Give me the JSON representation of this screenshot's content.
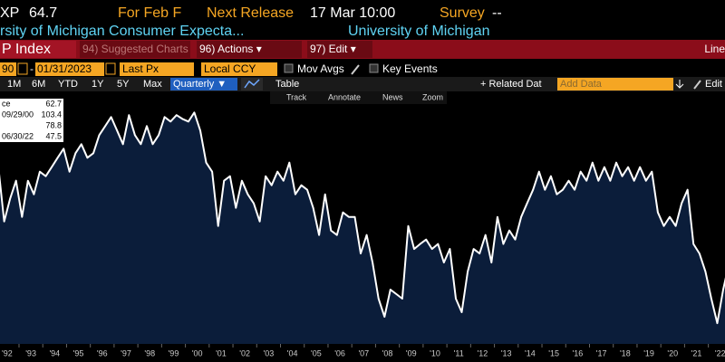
{
  "header": {
    "ticker": "XP",
    "price": "64.7",
    "for_label": "For Feb F",
    "release_label": "Next Release",
    "release_value": "17 Mar 10:00",
    "survey_label": "Survey",
    "survey_value": "--",
    "description": "rsity of Michigan Consumer Expecta...",
    "source": "University of Michigan"
  },
  "toolbar": {
    "security": "P Index",
    "suggested": "94) Suggested Charts",
    "actions": "96) Actions ▾",
    "edit": "97) Edit ▾",
    "view": "Line"
  },
  "controls": {
    "start_date": "90",
    "dash": "-",
    "end_date": "01/31/2023",
    "field": "Last Px",
    "currency": "Local CCY",
    "mov_avgs": "Mov Avgs",
    "key_events": "Key Events"
  },
  "ranges": [
    "1M",
    "6M",
    "YTD",
    "1Y",
    "5Y",
    "Max"
  ],
  "frequency": "Quarterly ▼",
  "table": "Table",
  "related": "+ Related Dat",
  "add_data": "Add Data",
  "edit": "Edit",
  "tools": [
    "Track",
    "Annotate",
    "News",
    "Zoom"
  ],
  "chart_data": {
    "type": "line",
    "color": "#ffffff",
    "fill": "#0b1d3a",
    "legend": [
      {
        "label": "ce",
        "value": 62.7
      },
      {
        "label": "09/29/00",
        "value": 103.4
      },
      {
        "value": 78.8
      },
      {
        "label": "06/30/22",
        "value": 47.5
      }
    ],
    "xlim": [
      1992.2,
      2022.7
    ],
    "ylim": [
      42,
      109
    ],
    "xticks": [
      {
        "value": 1992,
        "label": "'92"
      },
      {
        "value": 1993,
        "label": "'93"
      },
      {
        "value": 1994,
        "label": "'94"
      },
      {
        "value": 1995,
        "label": "'95"
      },
      {
        "value": 1996,
        "label": "'96"
      },
      {
        "value": 1997,
        "label": "'97"
      },
      {
        "value": 1998,
        "label": "'98"
      },
      {
        "value": 1999,
        "label": "'99"
      },
      {
        "value": 2000,
        "label": "'00"
      },
      {
        "value": 2001,
        "label": "'01"
      },
      {
        "value": 2002,
        "label": "'02"
      },
      {
        "value": 2003,
        "label": "'03"
      },
      {
        "value": 2004,
        "label": "'04"
      },
      {
        "value": 2005,
        "label": "'05"
      },
      {
        "value": 2006,
        "label": "'06"
      },
      {
        "value": 2007,
        "label": "'07"
      },
      {
        "value": 2008,
        "label": "'08"
      },
      {
        "value": 2009,
        "label": "'09"
      },
      {
        "value": 2010,
        "label": "'10"
      },
      {
        "value": 2011,
        "label": "'11"
      },
      {
        "value": 2012,
        "label": "'12"
      },
      {
        "value": 2013,
        "label": "'13"
      },
      {
        "value": 2014,
        "label": "'14"
      },
      {
        "value": 2015,
        "label": "'15"
      },
      {
        "value": 2016,
        "label": "'16"
      },
      {
        "value": 2017,
        "label": "'17"
      },
      {
        "value": 2018,
        "label": "'18"
      },
      {
        "value": 2019,
        "label": "'19"
      },
      {
        "value": 2020,
        "label": "'20"
      },
      {
        "value": 2021,
        "label": "'21"
      },
      {
        "value": 2022,
        "label": "'22"
      }
    ],
    "x": [
      1992.125,
      1992.375,
      1992.625,
      1992.875,
      1993.125,
      1993.375,
      1993.625,
      1993.875,
      1994.125,
      1994.375,
      1994.625,
      1994.875,
      1995.125,
      1995.375,
      1995.625,
      1995.875,
      1996.125,
      1996.375,
      1996.625,
      1996.875,
      1997.125,
      1997.375,
      1997.625,
      1997.875,
      1998.125,
      1998.375,
      1998.625,
      1998.875,
      1999.125,
      1999.375,
      1999.625,
      1999.875,
      2000.125,
      2000.375,
      2000.625,
      2000.875,
      2001.125,
      2001.375,
      2001.625,
      2001.875,
      2002.125,
      2002.375,
      2002.625,
      2002.875,
      2003.125,
      2003.375,
      2003.625,
      2003.875,
      2004.125,
      2004.375,
      2004.625,
      2004.875,
      2005.125,
      2005.375,
      2005.625,
      2005.875,
      2006.125,
      2006.375,
      2006.625,
      2006.875,
      2007.125,
      2007.375,
      2007.625,
      2007.875,
      2008.125,
      2008.375,
      2008.625,
      2008.875,
      2009.125,
      2009.375,
      2009.625,
      2009.875,
      2010.125,
      2010.375,
      2010.625,
      2010.875,
      2011.125,
      2011.375,
      2011.625,
      2011.875,
      2012.125,
      2012.375,
      2012.625,
      2012.875,
      2013.125,
      2013.375,
      2013.625,
      2013.875,
      2014.125,
      2014.375,
      2014.625,
      2014.875,
      2015.125,
      2015.375,
      2015.625,
      2015.875,
      2016.125,
      2016.375,
      2016.625,
      2016.875,
      2017.125,
      2017.375,
      2017.625,
      2017.875,
      2018.125,
      2018.375,
      2018.625,
      2018.875,
      2019.125,
      2019.375,
      2019.625,
      2019.875,
      2020.125,
      2020.375,
      2020.625,
      2020.875,
      2021.125,
      2021.375,
      2021.625,
      2021.875,
      2022.125,
      2022.375,
      2022.625,
      2022.875
    ],
    "values": [
      89.4,
      74.5,
      80.5,
      85.3,
      75.7,
      85.3,
      81.7,
      87.7,
      86.5,
      88.9,
      91.4,
      93.8,
      87.7,
      92.6,
      95.0,
      91.4,
      92.6,
      97.4,
      99.8,
      102.2,
      98.6,
      95.0,
      102.7,
      97.4,
      95.0,
      99.8,
      95.0,
      97.4,
      102.2,
      101.0,
      102.7,
      101.7,
      101.0,
      103.4,
      98.6,
      90.1,
      87.7,
      73.3,
      85.3,
      86.5,
      78.1,
      85.3,
      81.7,
      79.3,
      74.5,
      86.5,
      84.1,
      87.7,
      85.3,
      90.1,
      81.7,
      84.1,
      82.9,
      78.1,
      70.9,
      81.7,
      72.1,
      70.9,
      76.9,
      75.7,
      75.7,
      66.0,
      70.9,
      63.6,
      54.0,
      49.2,
      56.4,
      55.2,
      54.0,
      73.3,
      67.2,
      68.5,
      69.7,
      67.2,
      68.5,
      63.6,
      67.2,
      54.0,
      50.4,
      61.2,
      67.2,
      66.0,
      70.9,
      63.6,
      75.7,
      68.5,
      72.1,
      69.7,
      75.7,
      79.3,
      82.9,
      87.7,
      82.9,
      86.5,
      81.7,
      82.9,
      85.3,
      82.9,
      87.7,
      85.3,
      90.1,
      85.3,
      88.9,
      85.3,
      90.1,
      86.5,
      88.9,
      85.3,
      88.9,
      85.3,
      87.7,
      76.9,
      73.3,
      75.7,
      73.3,
      79.3,
      82.9,
      68.5,
      66.0,
      61.2,
      54.0,
      47.5,
      56.4,
      63.6
    ]
  }
}
